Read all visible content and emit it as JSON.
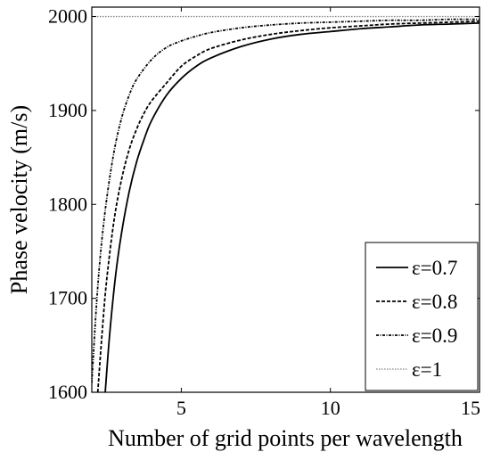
{
  "chart_data": {
    "type": "line",
    "title": "",
    "xlabel": "Number of grid points per wavelength",
    "ylabel": "Phase velocity (m/s)",
    "xlim": [
      2,
      15
    ],
    "ylim": [
      1600,
      2010
    ],
    "xticks": [
      5,
      10,
      15
    ],
    "yticks": [
      1600,
      1700,
      1800,
      1900,
      2000
    ],
    "grid": false,
    "legend_position": "bottom-right",
    "series": [
      {
        "name": "ε=0.7",
        "style": "solid",
        "color": "#000000",
        "x": [
          2.45,
          2.6,
          2.8,
          3.0,
          3.25,
          3.5,
          3.75,
          4.0,
          4.5,
          5.0,
          5.5,
          6.0,
          7.0,
          8.0,
          9.0,
          10.0,
          11.0,
          12.0,
          13.0,
          14.0,
          15.0
        ],
        "y": [
          1600,
          1662,
          1725,
          1770,
          1813,
          1845,
          1869,
          1889,
          1916,
          1934,
          1947,
          1956,
          1968,
          1976,
          1981,
          1984,
          1987,
          1989,
          1991,
          1992,
          1993
        ]
      },
      {
        "name": "ε=0.8",
        "style": "dashed",
        "color": "#000000",
        "x": [
          2.2,
          2.35,
          2.5,
          2.75,
          3.0,
          3.25,
          3.5,
          3.75,
          4.0,
          4.5,
          5.0,
          5.5,
          6.0,
          7.0,
          8.0,
          9.0,
          10.0,
          11.0,
          12.0,
          13.0,
          14.0,
          15.0
        ],
        "y": [
          1600,
          1665,
          1720,
          1784,
          1827,
          1858,
          1880,
          1897,
          1910,
          1929,
          1947,
          1958,
          1966,
          1975,
          1981,
          1985,
          1988,
          1990,
          1992,
          1993,
          1994,
          1995
        ]
      },
      {
        "name": "ε=0.9",
        "style": "dashdot",
        "color": "#000000",
        "x": [
          2.0,
          2.15,
          2.3,
          2.5,
          2.75,
          3.0,
          3.25,
          3.5,
          4.0,
          4.5,
          5.0,
          5.5,
          6.0,
          7.0,
          8.0,
          9.0,
          10.0,
          11.0,
          12.0,
          13.0,
          14.0,
          15.0
        ],
        "y": [
          1610,
          1690,
          1750,
          1806,
          1857,
          1892,
          1916,
          1933,
          1954,
          1967,
          1974,
          1979,
          1983,
          1988,
          1991,
          1993,
          1994,
          1995,
          1996,
          1996,
          1997,
          1997
        ]
      },
      {
        "name": "ε=1",
        "style": "dotted",
        "color": "#888888",
        "x": [
          2.0,
          15.0
        ],
        "y": [
          2000,
          2000
        ]
      }
    ]
  }
}
